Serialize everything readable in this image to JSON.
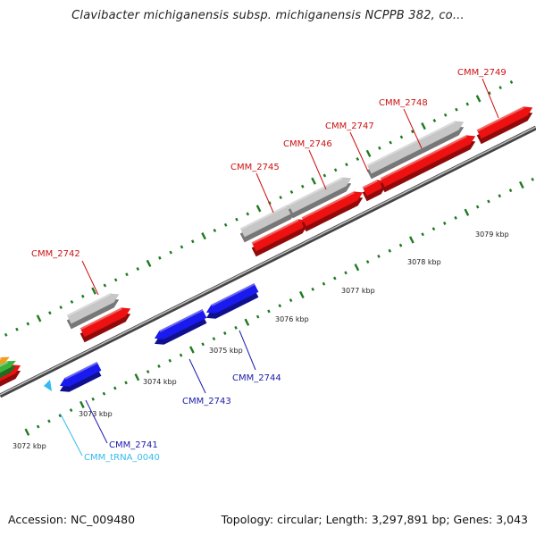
{
  "title": "Clavibacter michiganensis subsp. michiganensis NCPPB 382, co...",
  "footer": {
    "accession": "Accession: NC_009480",
    "topology": "Topology: circular; Length: 3,297,891 bp; Genes: 3,043"
  },
  "colors": {
    "forward_cds": "#ee1111",
    "reverse_cds": "#1a1aee",
    "gene_box": "#c6c6c6",
    "trna": "#33bbee",
    "backbone": "#888888",
    "ticks": "#1e7a1e",
    "label_forward": "#cc1111",
    "label_reverse": "#1a1aaa",
    "label_trna": "#33bbee"
  },
  "scale_labels": [
    "3072 kbp",
    "3073 kbp",
    "3074 kbp",
    "3075 kbp",
    "3076 kbp",
    "3077 kbp",
    "3078 kbp",
    "3079 kbp"
  ],
  "genes": [
    {
      "id": "CMM_2742",
      "strand": "forward"
    },
    {
      "id": "CMM_2745",
      "strand": "forward"
    },
    {
      "id": "CMM_2746",
      "strand": "forward"
    },
    {
      "id": "CMM_2747",
      "strand": "forward"
    },
    {
      "id": "CMM_2748",
      "strand": "forward"
    },
    {
      "id": "CMM_2749",
      "strand": "forward"
    },
    {
      "id": "CMM_2741",
      "strand": "reverse"
    },
    {
      "id": "CMM_2743",
      "strand": "reverse"
    },
    {
      "id": "CMM_2744",
      "strand": "reverse"
    },
    {
      "id": "CMM_tRNA_0040",
      "strand": "reverse",
      "type": "tRNA"
    }
  ]
}
